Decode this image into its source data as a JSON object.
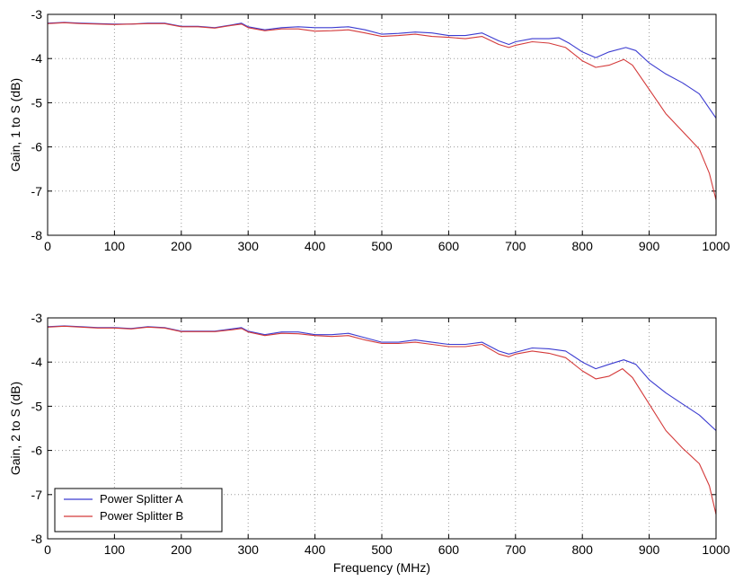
{
  "chart_data": [
    {
      "type": "line",
      "xlabel": "",
      "ylabel": "Gain, 1 to S (dB)",
      "xlim": [
        0,
        1000
      ],
      "ylim": [
        -8,
        -3
      ],
      "xticks": [
        "0",
        "100",
        "200",
        "300",
        "400",
        "500",
        "600",
        "700",
        "800",
        "900",
        "1000"
      ],
      "yticks": [
        "-3",
        "-4",
        "-5",
        "-6",
        "-7",
        "-8"
      ],
      "grid": true,
      "series": [
        {
          "name": "Power Splitter A",
          "color": "#3b3bd0",
          "points": [
            [
              0,
              -3.2
            ],
            [
              25,
              -3.18
            ],
            [
              50,
              -3.2
            ],
            [
              75,
              -3.21
            ],
            [
              100,
              -3.22
            ],
            [
              125,
              -3.22
            ],
            [
              150,
              -3.2
            ],
            [
              175,
              -3.2
            ],
            [
              200,
              -3.27
            ],
            [
              225,
              -3.27
            ],
            [
              250,
              -3.3
            ],
            [
              275,
              -3.24
            ],
            [
              290,
              -3.2
            ],
            [
              300,
              -3.28
            ],
            [
              325,
              -3.35
            ],
            [
              350,
              -3.3
            ],
            [
              375,
              -3.28
            ],
            [
              400,
              -3.3
            ],
            [
              425,
              -3.3
            ],
            [
              450,
              -3.28
            ],
            [
              475,
              -3.35
            ],
            [
              500,
              -3.45
            ],
            [
              525,
              -3.43
            ],
            [
              550,
              -3.4
            ],
            [
              575,
              -3.42
            ],
            [
              600,
              -3.48
            ],
            [
              625,
              -3.48
            ],
            [
              650,
              -3.42
            ],
            [
              675,
              -3.6
            ],
            [
              690,
              -3.68
            ],
            [
              700,
              -3.62
            ],
            [
              725,
              -3.55
            ],
            [
              750,
              -3.55
            ],
            [
              765,
              -3.53
            ],
            [
              780,
              -3.65
            ],
            [
              800,
              -3.85
            ],
            [
              820,
              -3.98
            ],
            [
              840,
              -3.85
            ],
            [
              865,
              -3.75
            ],
            [
              880,
              -3.82
            ],
            [
              900,
              -4.1
            ],
            [
              925,
              -4.35
            ],
            [
              950,
              -4.55
            ],
            [
              975,
              -4.8
            ],
            [
              1000,
              -5.35
            ]
          ]
        },
        {
          "name": "Power Splitter B",
          "color": "#d43a3a",
          "points": [
            [
              0,
              -3.21
            ],
            [
              25,
              -3.19
            ],
            [
              50,
              -3.21
            ],
            [
              75,
              -3.22
            ],
            [
              100,
              -3.23
            ],
            [
              125,
              -3.22
            ],
            [
              150,
              -3.21
            ],
            [
              175,
              -3.21
            ],
            [
              200,
              -3.28
            ],
            [
              225,
              -3.28
            ],
            [
              250,
              -3.31
            ],
            [
              275,
              -3.25
            ],
            [
              290,
              -3.22
            ],
            [
              300,
              -3.3
            ],
            [
              325,
              -3.37
            ],
            [
              350,
              -3.33
            ],
            [
              375,
              -3.33
            ],
            [
              400,
              -3.38
            ],
            [
              425,
              -3.37
            ],
            [
              450,
              -3.35
            ],
            [
              475,
              -3.42
            ],
            [
              500,
              -3.5
            ],
            [
              525,
              -3.48
            ],
            [
              550,
              -3.45
            ],
            [
              575,
              -3.5
            ],
            [
              600,
              -3.52
            ],
            [
              625,
              -3.55
            ],
            [
              650,
              -3.5
            ],
            [
              675,
              -3.68
            ],
            [
              690,
              -3.75
            ],
            [
              700,
              -3.7
            ],
            [
              725,
              -3.62
            ],
            [
              750,
              -3.65
            ],
            [
              775,
              -3.75
            ],
            [
              800,
              -4.05
            ],
            [
              820,
              -4.2
            ],
            [
              840,
              -4.15
            ],
            [
              862,
              -4.02
            ],
            [
              875,
              -4.15
            ],
            [
              900,
              -4.7
            ],
            [
              925,
              -5.25
            ],
            [
              950,
              -5.65
            ],
            [
              975,
              -6.05
            ],
            [
              990,
              -6.6
            ],
            [
              1000,
              -7.2
            ]
          ]
        }
      ]
    },
    {
      "type": "line",
      "xlabel": "Frequency (MHz)",
      "ylabel": "Gain, 2 to S (dB)",
      "xlim": [
        0,
        1000
      ],
      "ylim": [
        -8,
        -3
      ],
      "xticks": [
        "0",
        "100",
        "200",
        "300",
        "400",
        "500",
        "600",
        "700",
        "800",
        "900",
        "1000"
      ],
      "yticks": [
        "-3",
        "-4",
        "-5",
        "-6",
        "-7",
        "-8"
      ],
      "grid": true,
      "legend": "bottom-left",
      "series": [
        {
          "name": "Power Splitter A",
          "color": "#3b3bd0",
          "points": [
            [
              0,
              -3.2
            ],
            [
              25,
              -3.18
            ],
            [
              50,
              -3.2
            ],
            [
              75,
              -3.22
            ],
            [
              100,
              -3.22
            ],
            [
              125,
              -3.24
            ],
            [
              150,
              -3.2
            ],
            [
              175,
              -3.22
            ],
            [
              200,
              -3.3
            ],
            [
              225,
              -3.3
            ],
            [
              250,
              -3.3
            ],
            [
              275,
              -3.25
            ],
            [
              290,
              -3.22
            ],
            [
              300,
              -3.3
            ],
            [
              325,
              -3.38
            ],
            [
              350,
              -3.32
            ],
            [
              375,
              -3.32
            ],
            [
              400,
              -3.38
            ],
            [
              425,
              -3.38
            ],
            [
              450,
              -3.35
            ],
            [
              475,
              -3.45
            ],
            [
              500,
              -3.55
            ],
            [
              525,
              -3.55
            ],
            [
              550,
              -3.5
            ],
            [
              575,
              -3.55
            ],
            [
              600,
              -3.6
            ],
            [
              625,
              -3.6
            ],
            [
              650,
              -3.55
            ],
            [
              675,
              -3.75
            ],
            [
              690,
              -3.82
            ],
            [
              700,
              -3.78
            ],
            [
              725,
              -3.68
            ],
            [
              750,
              -3.7
            ],
            [
              775,
              -3.75
            ],
            [
              800,
              -4.0
            ],
            [
              820,
              -4.15
            ],
            [
              840,
              -4.05
            ],
            [
              862,
              -3.95
            ],
            [
              880,
              -4.05
            ],
            [
              900,
              -4.4
            ],
            [
              925,
              -4.7
            ],
            [
              950,
              -4.95
            ],
            [
              975,
              -5.2
            ],
            [
              1000,
              -5.55
            ]
          ]
        },
        {
          "name": "Power Splitter B",
          "color": "#d43a3a",
          "points": [
            [
              0,
              -3.21
            ],
            [
              25,
              -3.19
            ],
            [
              50,
              -3.21
            ],
            [
              75,
              -3.23
            ],
            [
              100,
              -3.23
            ],
            [
              125,
              -3.25
            ],
            [
              150,
              -3.21
            ],
            [
              175,
              -3.23
            ],
            [
              200,
              -3.31
            ],
            [
              225,
              -3.31
            ],
            [
              250,
              -3.31
            ],
            [
              275,
              -3.27
            ],
            [
              290,
              -3.24
            ],
            [
              300,
              -3.32
            ],
            [
              325,
              -3.4
            ],
            [
              350,
              -3.35
            ],
            [
              375,
              -3.36
            ],
            [
              400,
              -3.4
            ],
            [
              425,
              -3.42
            ],
            [
              450,
              -3.4
            ],
            [
              475,
              -3.5
            ],
            [
              500,
              -3.58
            ],
            [
              525,
              -3.58
            ],
            [
              550,
              -3.55
            ],
            [
              575,
              -3.6
            ],
            [
              600,
              -3.65
            ],
            [
              625,
              -3.65
            ],
            [
              650,
              -3.6
            ],
            [
              675,
              -3.82
            ],
            [
              690,
              -3.88
            ],
            [
              700,
              -3.82
            ],
            [
              725,
              -3.75
            ],
            [
              750,
              -3.8
            ],
            [
              775,
              -3.9
            ],
            [
              800,
              -4.2
            ],
            [
              820,
              -4.38
            ],
            [
              840,
              -4.32
            ],
            [
              860,
              -4.15
            ],
            [
              875,
              -4.35
            ],
            [
              900,
              -4.95
            ],
            [
              925,
              -5.55
            ],
            [
              950,
              -5.95
            ],
            [
              975,
              -6.3
            ],
            [
              990,
              -6.8
            ],
            [
              1000,
              -7.45
            ]
          ]
        }
      ]
    }
  ]
}
